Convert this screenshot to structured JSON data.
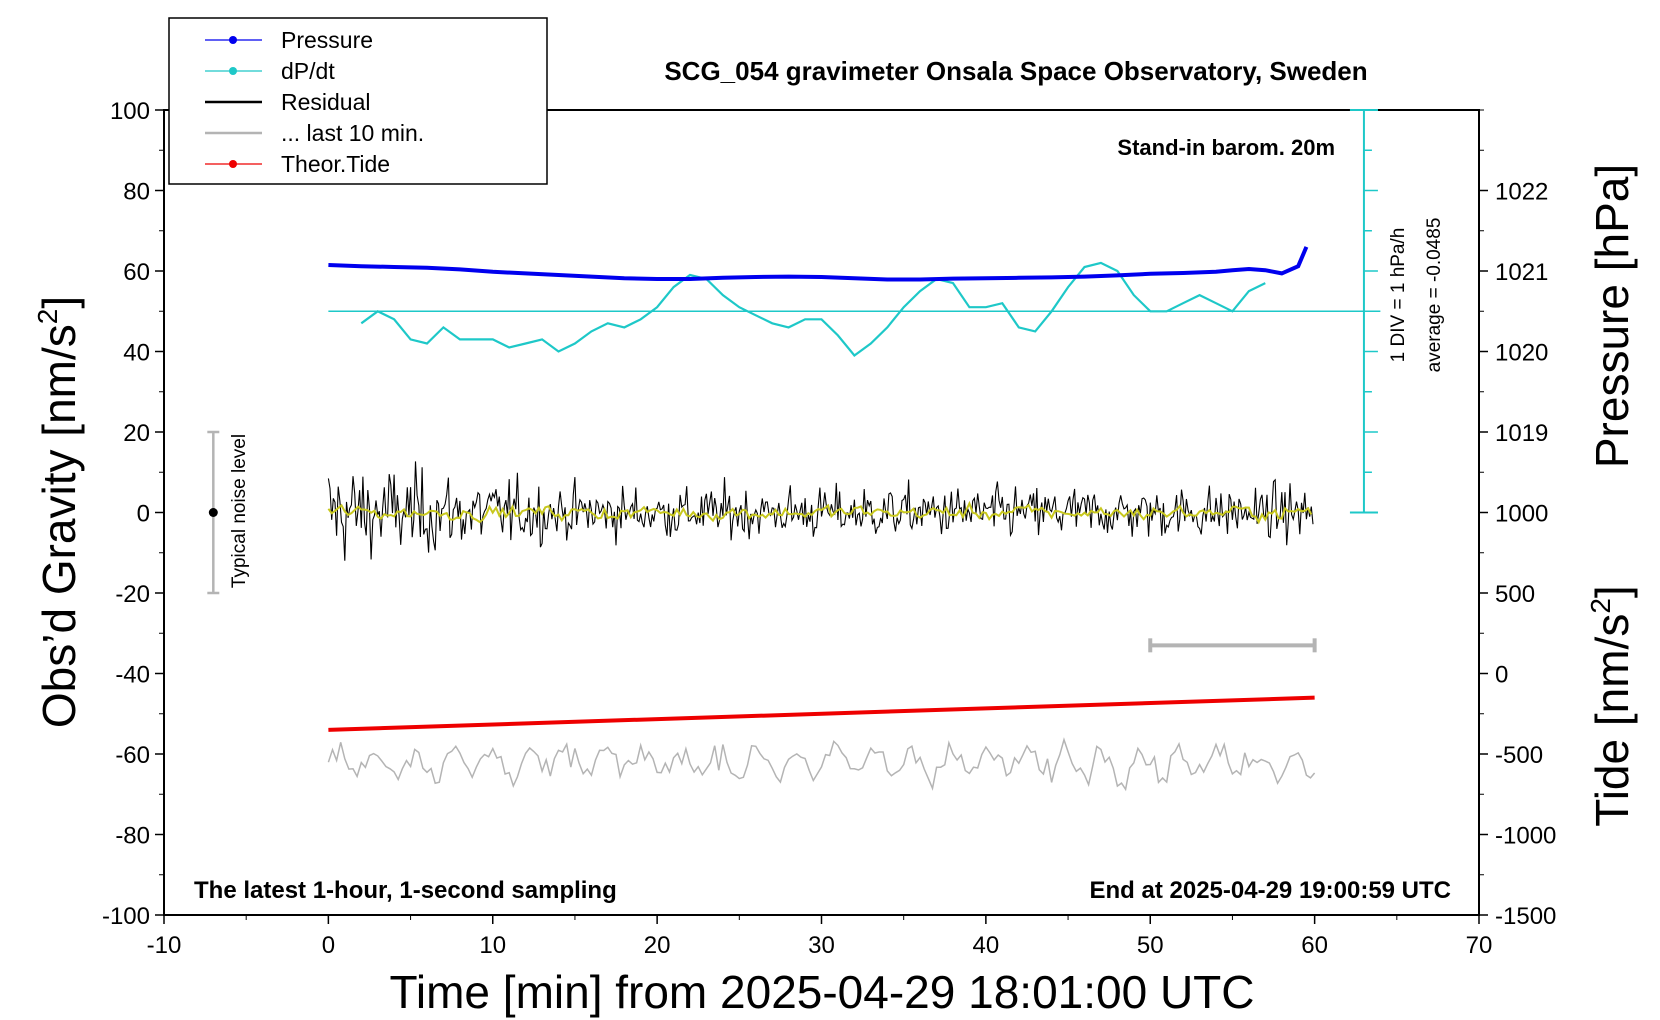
{
  "colors": {
    "pressure": "#0000ee",
    "dpdt": "#1ec8c8",
    "residual": "#000000",
    "last10": "#b4b4b4",
    "tide": "#ee0000",
    "yellow": "#c8c81e"
  },
  "chart_data": {
    "type": "line",
    "title": "SCG_054 gravimeter Onsala Space Observatory, Sweden",
    "xlabel": "Time [min] from 2025-04-29 18:01:00 UTC",
    "ylabel_left_main": "Obs’d Gravity [nm/s",
    "ylabel_left_sup": "2",
    "ylabel_left_end": "]",
    "ylabel_right_top": "Pressure [hPa]",
    "ylabel_right_bottom_main": "Tide [nm/s",
    "ylabel_right_bottom_sup": "2",
    "ylabel_right_bottom_end": "]",
    "xlim": [
      -10,
      70
    ],
    "ylim": [
      -100,
      100
    ],
    "xticks": [
      -10,
      0,
      10,
      20,
      30,
      40,
      50,
      60,
      70
    ],
    "yticks": [
      -100,
      -80,
      -60,
      -40,
      -20,
      0,
      20,
      40,
      60,
      80,
      100
    ],
    "pressure_ticks": [
      1019,
      1020,
      1021,
      1022
    ],
    "pressure_axis": {
      "value_at_y0": 1018,
      "value_at_y100": 1023
    },
    "tide_ticks": [
      -1500,
      -1000,
      -500,
      0,
      500,
      1000
    ],
    "tide_axis": {
      "value_at_ybottom": -1500,
      "value_at_y0": 1000
    },
    "annotations": {
      "stand_in": "Stand-in barom. 20m",
      "latest": "The latest 1-hour, 1-second sampling",
      "end_at": "End at 2025-04-29 19:00:59 UTC",
      "div_label": "1 DIV = 1 hPa/h",
      "average_label": "average = -0.0485",
      "noise_label": "Typical noise level"
    },
    "legend": [
      {
        "label": "Pressure",
        "color_key": "pressure",
        "marker": true
      },
      {
        "label": "dP/dt",
        "color_key": "dpdt",
        "marker": true
      },
      {
        "label": "Residual",
        "color_key": "residual",
        "marker": false
      },
      {
        "label": "... last 10 min.",
        "color_key": "last10",
        "marker": false
      },
      {
        "label": "Theor.Tide",
        "color_key": "tide",
        "marker": true
      }
    ],
    "dpdt_baseline_y": 50,
    "noise_bar": {
      "x": -7,
      "center": 0,
      "low": -20,
      "high": 20
    },
    "last10_bar": {
      "x_start": 50,
      "x_end": 60,
      "y": -33
    },
    "series": [
      {
        "name": "Pressure",
        "x": [
          0,
          2,
          4,
          6,
          8,
          10,
          12,
          14,
          16,
          18,
          20,
          22,
          24,
          26,
          28,
          30,
          32,
          34,
          36,
          38,
          40,
          42,
          44,
          46,
          48,
          50,
          52,
          54,
          55,
          56,
          57,
          58,
          59,
          59.5
        ],
        "y": [
          61.5,
          61.2,
          61.0,
          60.8,
          60.4,
          59.8,
          59.4,
          59.0,
          58.6,
          58.2,
          58.0,
          58.0,
          58.3,
          58.5,
          58.6,
          58.5,
          58.2,
          57.9,
          57.9,
          58.1,
          58.2,
          58.3,
          58.4,
          58.6,
          58.9,
          59.3,
          59.5,
          59.8,
          60.2,
          60.5,
          60.2,
          59.4,
          61.2,
          66.0
        ]
      },
      {
        "name": "dP/dt",
        "x": [
          2,
          3,
          4,
          5,
          6,
          7,
          8,
          9,
          10,
          11,
          12,
          13,
          14,
          15,
          16,
          17,
          18,
          19,
          20,
          21,
          22,
          23,
          24,
          25,
          26,
          27,
          28,
          29,
          30,
          31,
          32,
          33,
          34,
          35,
          36,
          37,
          38,
          39,
          40,
          41,
          42,
          43,
          44,
          45,
          46,
          47,
          48,
          49,
          50,
          51,
          52,
          53,
          54,
          55,
          56,
          57
        ],
        "y": [
          47,
          50,
          48,
          43,
          42,
          46,
          43,
          43,
          43,
          41,
          42,
          43,
          40,
          42,
          45,
          47,
          46,
          48,
          51,
          56,
          59,
          58,
          54,
          51,
          49,
          47,
          46,
          48,
          48,
          44,
          39,
          42,
          46,
          51,
          55,
          58,
          57,
          51,
          51,
          52,
          46,
          45,
          50,
          56,
          61,
          62,
          60,
          54,
          50,
          50,
          52,
          54,
          52,
          50,
          55,
          57
        ]
      },
      {
        "name": "Residual",
        "x": [],
        "y": [],
        "note": "generated noise around 0 for x in [0,60]"
      },
      {
        "name": "Theor.Tide",
        "x": [
          0,
          60
        ],
        "y": [
          -54,
          -46
        ]
      }
    ]
  }
}
